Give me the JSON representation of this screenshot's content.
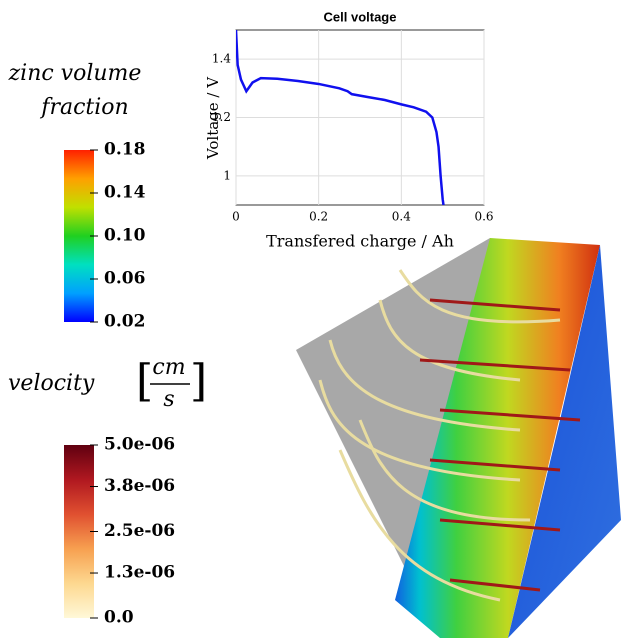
{
  "chart_data": {
    "type": "line",
    "title": "Cell voltage",
    "xlabel": "Transfered charge / Ah",
    "ylabel": "Voltage / V",
    "x": [
      0,
      0.004,
      0.012,
      0.025,
      0.04,
      0.06,
      0.1,
      0.15,
      0.2,
      0.25,
      0.27,
      0.28,
      0.32,
      0.36,
      0.4,
      0.43,
      0.46,
      0.475,
      0.485,
      0.49,
      0.495,
      0.5,
      0.502
    ],
    "series": [
      {
        "name": "Cell voltage",
        "color": "#1010ee",
        "values": [
          1.5,
          1.38,
          1.33,
          1.29,
          1.32,
          1.335,
          1.333,
          1.325,
          1.315,
          1.3,
          1.29,
          1.28,
          1.27,
          1.26,
          1.245,
          1.235,
          1.22,
          1.2,
          1.15,
          1.1,
          1.0,
          0.92,
          0.9
        ]
      }
    ],
    "xlim": [
      0,
      0.6
    ],
    "ylim": [
      0.9,
      1.5
    ],
    "xticks": [
      0,
      0.2,
      0.4,
      0.6
    ],
    "yticks": [
      1,
      1.2,
      1.4
    ],
    "grid": true
  },
  "colorbars": [
    {
      "title": [
        "zinc volume",
        "fraction"
      ],
      "lim": [
        0.02,
        0.18
      ],
      "ticks": [
        {
          "value": 0.18,
          "label": "0.18"
        },
        {
          "value": 0.14,
          "label": "0.14"
        },
        {
          "value": 0.1,
          "label": "0.10"
        },
        {
          "value": 0.06,
          "label": "0.06"
        },
        {
          "value": 0.02,
          "label": "0.02"
        }
      ],
      "colors": [
        "#0000ff",
        "#00a0ff",
        "#00e0c0",
        "#20d020",
        "#c0e000",
        "#ffa000",
        "#ff2000"
      ]
    },
    {
      "title": [
        "velocity",
        "cm",
        "s"
      ],
      "lim": [
        0,
        5e-06
      ],
      "ticks": [
        {
          "value": 5e-06,
          "label": "5.0e-06"
        },
        {
          "value": 3.8e-06,
          "label": "3.8e-06"
        },
        {
          "value": 2.5e-06,
          "label": "2.5e-06"
        },
        {
          "value": 1.3e-06,
          "label": "1.3e-06"
        },
        {
          "value": 0,
          "label": "0.0"
        }
      ],
      "colors": [
        "#fff8d8",
        "#fdd890",
        "#f7a050",
        "#e05030",
        "#b01820",
        "#600010"
      ]
    }
  ]
}
